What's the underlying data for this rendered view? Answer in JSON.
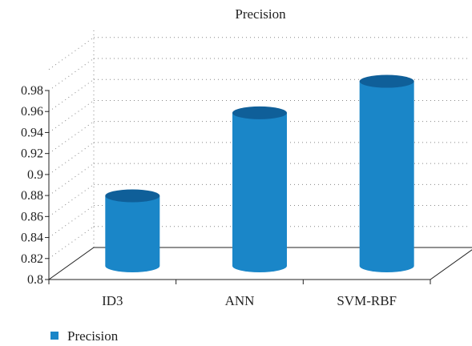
{
  "chart_data": {
    "type": "bar",
    "title": "Precision",
    "categories": [
      "ID3",
      "ANN",
      "SVM-RBF"
    ],
    "series": [
      {
        "name": "Precision",
        "values": [
          0.866,
          0.945,
          0.975
        ]
      }
    ],
    "ylim": [
      0.8,
      0.98
    ],
    "yticks": [
      "0.8",
      "0.82",
      "0.84",
      "0.86",
      "0.88",
      "0.9",
      "0.92",
      "0.94",
      "0.96",
      "0.98"
    ],
    "grid": true,
    "legend_position": "bottom-left",
    "colors": {
      "bar": "#1a86c8",
      "bar_top": "#0f5f99",
      "axis": "#222222",
      "grid": "#888888"
    }
  }
}
